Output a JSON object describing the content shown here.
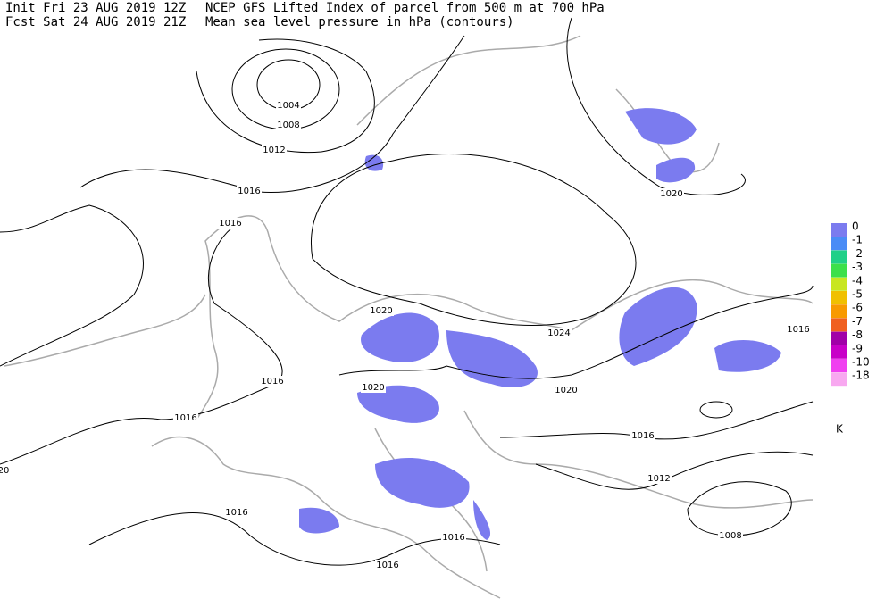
{
  "header": {
    "init": "Init  Fri 23 AUG 2019 12Z",
    "fcst": "Fcst Sat 24 AUG 2019 21Z",
    "title": "NCEP GFS Lifted Index of parcel from 500 m at 700 hPa",
    "subtitle": "Mean sea level pressure in hPa (contours)"
  },
  "contour_labels": [
    "1004",
    "1008",
    "1012",
    "1016",
    "1016",
    "1020",
    "1024",
    "1020",
    "1020",
    "1016",
    "1016",
    "1016",
    "1016",
    "1016",
    "1016",
    "1012",
    "1008",
    "1016",
    "1020",
    "20"
  ],
  "legend": {
    "items": [
      {
        "label": "0",
        "color": "#7b7bef"
      },
      {
        "label": "-1",
        "color": "#4a8cf6"
      },
      {
        "label": "-2",
        "color": "#20d088"
      },
      {
        "label": "-3",
        "color": "#3ce04a"
      },
      {
        "label": "-4",
        "color": "#c8e620"
      },
      {
        "label": "-5",
        "color": "#f0c000"
      },
      {
        "label": "-6",
        "color": "#f89a00"
      },
      {
        "label": "-7",
        "color": "#f06020"
      },
      {
        "label": "-8",
        "color": "#a000a8"
      },
      {
        "label": "-9",
        "color": "#c800c8"
      },
      {
        "label": "-10",
        "color": "#f040f0"
      },
      {
        "label": "-18",
        "color": "#f8a8f0"
      }
    ],
    "unit": "K"
  }
}
